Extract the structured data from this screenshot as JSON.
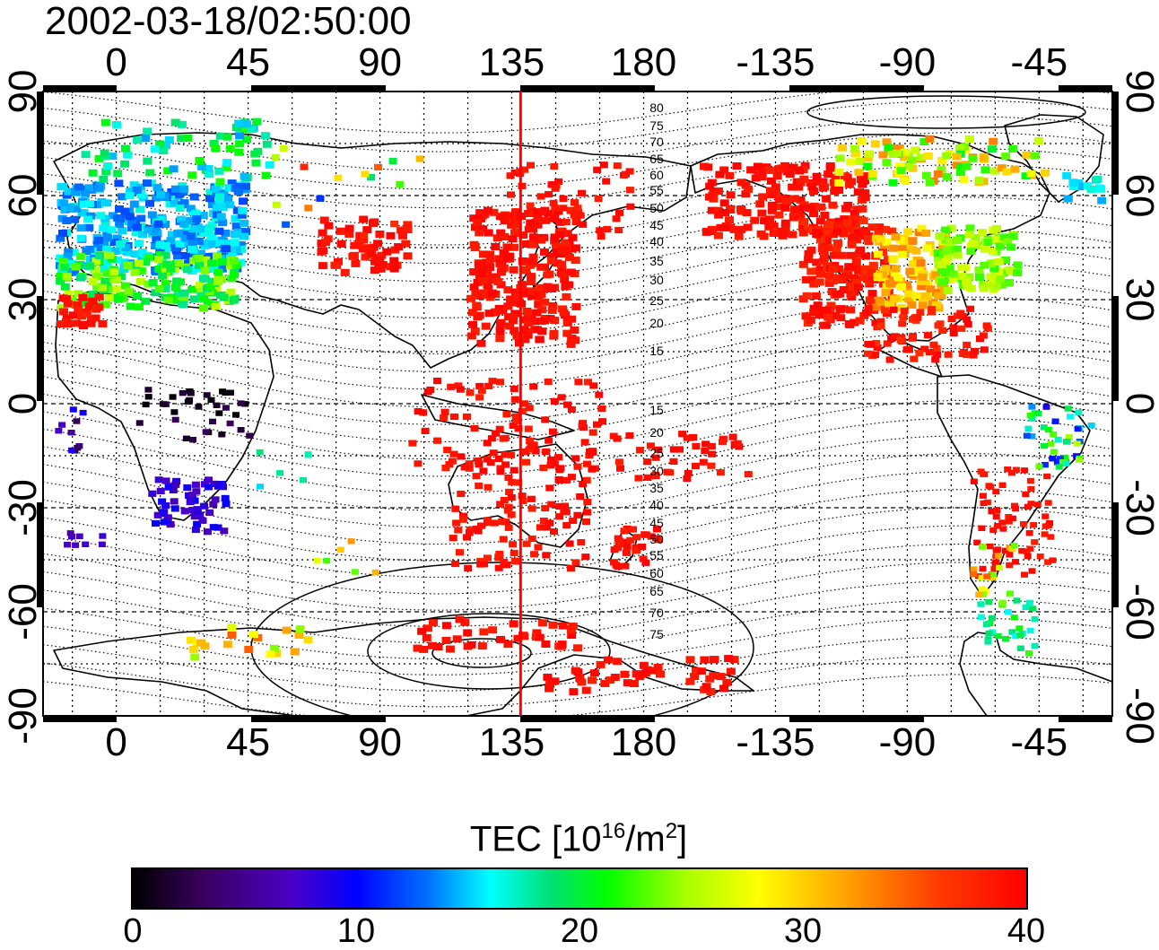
{
  "title": "2002-03-18/02:50:00",
  "lon_labels": [
    "0",
    "45",
    "90",
    "135",
    "180",
    "-135",
    "-90",
    "-45"
  ],
  "lat_labels": [
    "90",
    "60",
    "30",
    "0",
    "-30",
    "-60",
    "-90"
  ],
  "contour_labels_north": [
    "80",
    "75",
    "70",
    "65",
    "60",
    "55",
    "50",
    "45",
    "40",
    "35",
    "30",
    "25",
    "20",
    "15"
  ],
  "contour_labels_south": [
    "15",
    "20",
    "25",
    "30",
    "35",
    "40",
    "45",
    "50",
    "55",
    "60",
    "65",
    "70",
    "75"
  ],
  "colorbar": {
    "title_main": "TEC  [10",
    "title_exp1": "16",
    "title_mid": "/m",
    "title_exp2": "2",
    "title_end": "]",
    "ticks": [
      "0",
      "10",
      "20",
      "30",
      "40"
    ],
    "min": 0,
    "max": 40
  },
  "map": {
    "lon_range": [
      -25,
      340
    ],
    "lat_range": [
      -90,
      90
    ],
    "meridian_marker_lon": 138,
    "marker_color": "#ff0000",
    "projection": "equirectangular"
  }
}
